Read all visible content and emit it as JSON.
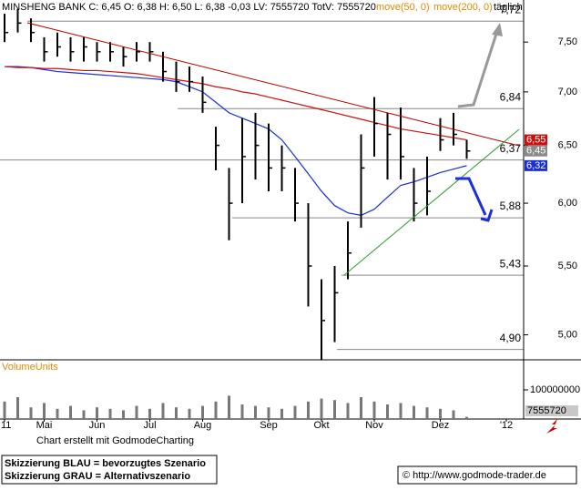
{
  "header": {
    "title": "MINSHENG BANK C: 6,45 O: 6,38 H: 6,50 L: 6,38 -0,03 LV: 7555720 TotV: 7555720",
    "interval": "täglich"
  },
  "chart_data": [
    {
      "type": "hlc",
      "log_scale": true,
      "categories": [
        "11",
        null,
        null,
        "Mai",
        null,
        null,
        null,
        "Jun",
        null,
        null,
        null,
        "Jul",
        null,
        null,
        null,
        "Aug",
        null,
        null,
        null,
        null,
        "Sep",
        null,
        null,
        null,
        "Okt",
        null,
        null,
        null,
        "Nov",
        null,
        null,
        null,
        null,
        "Dez",
        null,
        null,
        null,
        null,
        "'12",
        null
      ],
      "high": [
        7.8,
        7.85,
        7.75,
        7.55,
        7.6,
        7.55,
        7.55,
        7.5,
        7.5,
        7.45,
        7.5,
        7.5,
        7.4,
        7.3,
        7.25,
        7.15,
        6.67,
        6.3,
        6.75,
        6.8,
        6.7,
        6.5,
        6.3,
        6.0,
        5.4,
        5.5,
        5.85,
        6.6,
        6.95,
        6.8,
        6.85,
        6.3,
        6.4,
        6.75,
        6.8,
        6.55,
        null,
        null,
        null,
        null
      ],
      "low": [
        7.5,
        7.6,
        7.5,
        7.3,
        7.35,
        7.3,
        7.3,
        7.3,
        7.3,
        7.25,
        7.3,
        7.3,
        7.1,
        7.0,
        7.0,
        6.8,
        6.28,
        5.7,
        6.0,
        6.2,
        6.1,
        6.1,
        5.85,
        5.2,
        4.83,
        4.95,
        5.4,
        5.8,
        6.4,
        6.2,
        6.2,
        5.85,
        5.9,
        6.45,
        6.5,
        6.38,
        null,
        null,
        null,
        null
      ],
      "close": [
        7.6,
        7.7,
        7.6,
        7.4,
        7.45,
        7.4,
        7.45,
        7.4,
        7.4,
        7.35,
        7.4,
        7.4,
        7.2,
        7.1,
        7.1,
        6.9,
        6.5,
        6.0,
        6.4,
        6.5,
        6.3,
        6.3,
        6.0,
        5.5,
        5.1,
        5.3,
        5.6,
        6.3,
        6.7,
        6.6,
        6.4,
        6.0,
        6.1,
        6.55,
        6.6,
        6.45,
        null,
        null,
        null,
        null
      ],
      "bar_color": "#000000",
      "series": [
        {
          "name": "move(50, 0)",
          "color": "#1a2fd6",
          "values": [
            7.25,
            7.25,
            7.24,
            7.22,
            7.2,
            7.19,
            7.18,
            7.17,
            7.16,
            7.15,
            7.14,
            7.13,
            7.12,
            7.1,
            7.05,
            7.0,
            6.9,
            6.8,
            6.75,
            6.7,
            6.65,
            6.55,
            6.4,
            6.25,
            6.1,
            5.98,
            5.92,
            5.9,
            5.95,
            6.05,
            6.15,
            6.18,
            6.22,
            6.26,
            6.29,
            6.32,
            null,
            null,
            null,
            null
          ]
        },
        {
          "name": "move(200, 0)",
          "color": "#cc1010",
          "values": [
            7.25,
            7.24,
            7.24,
            7.23,
            7.23,
            7.22,
            7.21,
            7.21,
            7.2,
            7.19,
            7.18,
            7.16,
            7.14,
            7.12,
            7.1,
            7.08,
            7.05,
            7.03,
            7.0,
            6.98,
            6.95,
            6.92,
            6.89,
            6.86,
            6.83,
            6.8,
            6.77,
            6.74,
            6.71,
            6.68,
            6.65,
            6.63,
            6.61,
            6.59,
            6.57,
            6.55,
            null,
            null,
            null,
            null
          ]
        }
      ],
      "ylim": [
        4.83,
        7.95
      ],
      "yticks": [
        {
          "value": 5.0,
          "label": "5,00"
        },
        {
          "value": 5.5,
          "label": "5,50"
        },
        {
          "value": 6.0,
          "label": "6,00"
        },
        {
          "value": 6.5,
          "label": "6,50"
        },
        {
          "value": 7.0,
          "label": "7,00"
        },
        {
          "value": 7.5,
          "label": "7,50"
        }
      ],
      "levels": [
        {
          "value": 7.72,
          "label": "7,72"
        },
        {
          "value": 6.84,
          "label": "6,84"
        },
        {
          "value": 6.37,
          "label": "6,37"
        },
        {
          "value": 5.88,
          "label": "5,88"
        },
        {
          "value": 5.43,
          "label": "5,43"
        },
        {
          "value": 4.9,
          "label": "4,90"
        }
      ],
      "last_labels": [
        {
          "value": 6.55,
          "label": "6,55",
          "color": "#cc1010"
        },
        {
          "value": 6.45,
          "label": "6,45",
          "color": "#8a8a8a"
        },
        {
          "value": 6.32,
          "label": "6,32",
          "color": "#1a2fd6"
        }
      ]
    },
    {
      "type": "bar",
      "title": "VolumeUnits",
      "color": "#777777",
      "values": [
        60000000,
        75000000,
        40000000,
        55000000,
        35000000,
        45000000,
        30000000,
        40000000,
        35000000,
        30000000,
        45000000,
        35000000,
        55000000,
        40000000,
        35000000,
        45000000,
        60000000,
        80000000,
        50000000,
        45000000,
        40000000,
        35000000,
        45000000,
        60000000,
        70000000,
        65000000,
        55000000,
        75000000,
        60000000,
        50000000,
        55000000,
        45000000,
        40000000,
        35000000,
        30000000,
        7555720,
        null,
        null,
        null,
        null
      ],
      "ylim": [
        0,
        200000000
      ],
      "yticks": [
        100000000
      ],
      "last_value": 7555720
    }
  ],
  "footer": {
    "credit": "Chart erstellt mit GodmodeCharting",
    "legend": [
      "Skizzierung BLAU = bevorzugtes Szenario",
      "Skizzierung GRAU = Alternativszenario"
    ],
    "copyright": "© http://www.godmode-trader.de"
  }
}
